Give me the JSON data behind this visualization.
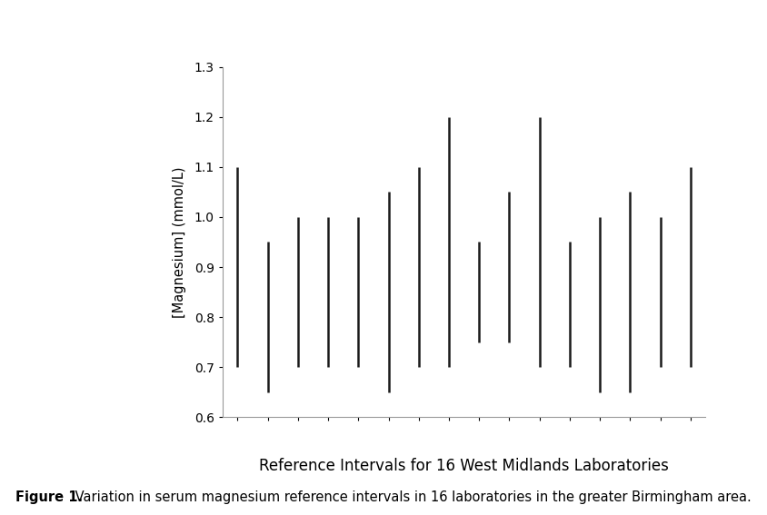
{
  "title": "Reference Intervals for 16 West Midlands Laboratories",
  "ylabel": "[Magnesium] (mmol/L)",
  "caption_bold": "Figure 1.",
  "caption_normal": " Variation in serum magnesium reference intervals in 16 laboratories in the greater Birmingham area.",
  "ylim": [
    0.6,
    1.3
  ],
  "yticks": [
    0.6,
    0.7,
    0.8,
    0.9,
    1.0,
    1.1,
    1.2,
    1.3
  ],
  "intervals": [
    [
      0.7,
      1.1
    ],
    [
      0.65,
      0.95
    ],
    [
      0.7,
      1.0
    ],
    [
      0.7,
      1.0
    ],
    [
      0.7,
      1.0
    ],
    [
      0.65,
      1.05
    ],
    [
      0.7,
      1.1
    ],
    [
      0.7,
      1.2
    ],
    [
      0.75,
      0.95
    ],
    [
      0.75,
      1.05
    ],
    [
      0.7,
      1.2
    ],
    [
      0.7,
      0.95
    ],
    [
      0.65,
      1.0
    ],
    [
      0.65,
      1.05
    ],
    [
      0.7,
      1.0
    ],
    [
      0.7,
      1.1
    ]
  ],
  "line_color": "#1a1a1a",
  "line_width": 1.8,
  "background_color": "#ffffff",
  "title_fontsize": 12,
  "ylabel_fontsize": 10.5,
  "caption_fontsize": 10.5,
  "tick_fontsize": 10,
  "spine_color": "#999999"
}
